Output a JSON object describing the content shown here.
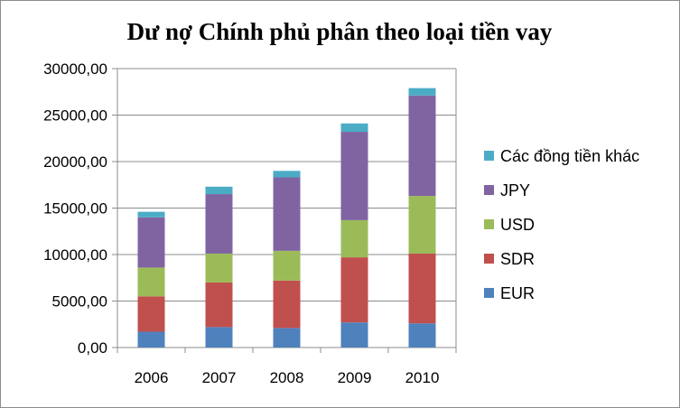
{
  "chart_data": {
    "type": "bar",
    "stacked": true,
    "title": "Dư nợ Chính phủ phân theo loại tiền vay",
    "xlabel": "",
    "ylabel": "",
    "categories": [
      "2006",
      "2007",
      "2008",
      "2009",
      "2010"
    ],
    "ylim": [
      0,
      30000
    ],
    "yticks": [
      0,
      5000,
      10000,
      15000,
      20000,
      25000,
      30000
    ],
    "ytick_labels": [
      "0,00",
      "5000,00",
      "10000,00",
      "15000,00",
      "20000,00",
      "25000,00",
      "30000,00"
    ],
    "grid": true,
    "legend_position": "right",
    "series": [
      {
        "name": "EUR",
        "color": "#4f81bd",
        "values": [
          1700,
          2200,
          2100,
          2700,
          2600
        ]
      },
      {
        "name": "SDR",
        "color": "#c0504d",
        "values": [
          3800,
          4800,
          5100,
          7000,
          7500
        ]
      },
      {
        "name": "USD",
        "color": "#9bbb59",
        "values": [
          3100,
          3100,
          3200,
          4000,
          6200
        ]
      },
      {
        "name": "JPY",
        "color": "#8064a2",
        "values": [
          5400,
          6400,
          7900,
          9500,
          10800
        ]
      },
      {
        "name": "Các đồng tiền khác",
        "color": "#4bacc6",
        "values": [
          600,
          800,
          700,
          900,
          800
        ]
      }
    ]
  }
}
